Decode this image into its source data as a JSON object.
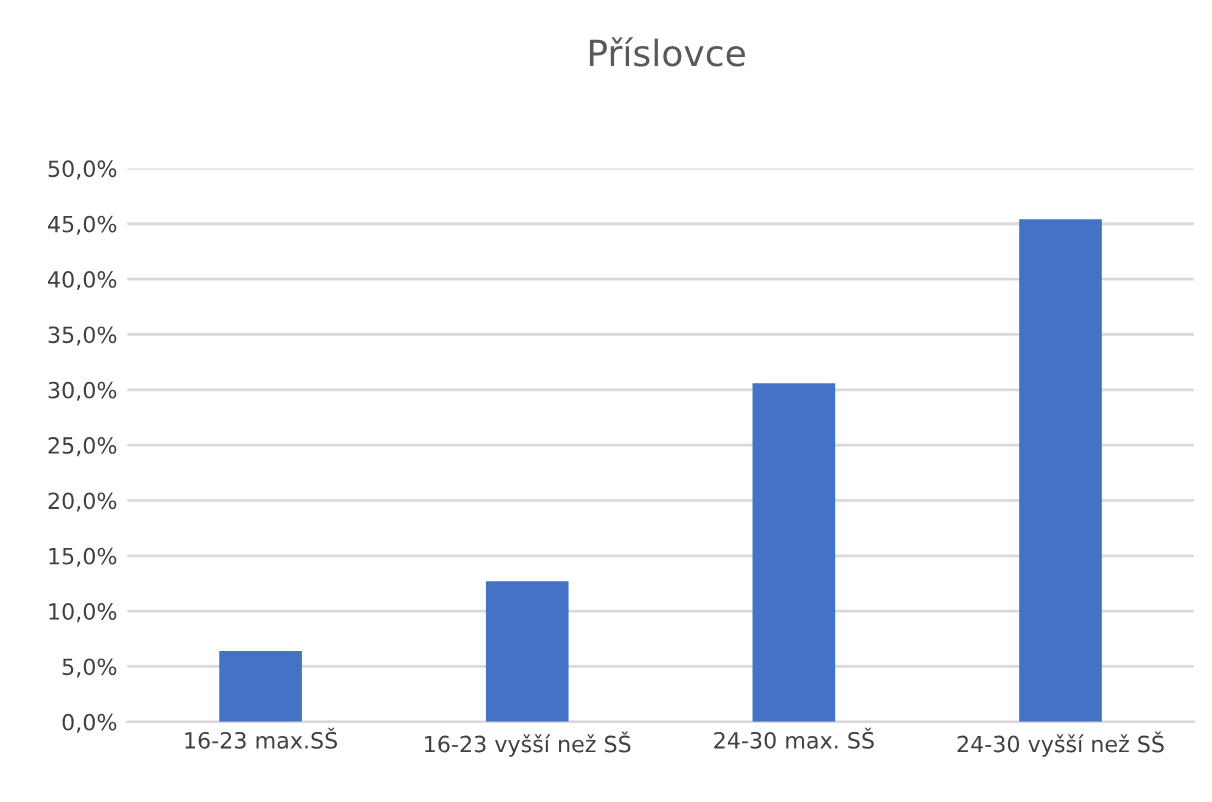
{
  "chart_data": {
    "type": "bar",
    "title": "Příslovce",
    "categories": [
      "16-23 max.SŠ",
      "16-23 vyšší než SŠ",
      "24-30 max. SŠ",
      "24-30 vyšší než SŠ"
    ],
    "values": [
      6.4,
      12.7,
      30.6,
      45.4
    ],
    "color": "#4472c4",
    "ylim": [
      0,
      50
    ],
    "yticks": [
      {
        "value": 0,
        "label": "0,0%"
      },
      {
        "value": 5,
        "label": "5,0%"
      },
      {
        "value": 10,
        "label": "10,0%"
      },
      {
        "value": 15,
        "label": "15,0%"
      },
      {
        "value": 20,
        "label": "20,0%"
      },
      {
        "value": 25,
        "label": "25,0%"
      },
      {
        "value": 30,
        "label": "30,0%"
      },
      {
        "value": 35,
        "label": "35,0%"
      },
      {
        "value": 40,
        "label": "40,0%"
      },
      {
        "value": 45,
        "label": "45,0%"
      },
      {
        "value": 50,
        "label": "50,0%"
      }
    ],
    "grid": "y",
    "legend": false
  }
}
